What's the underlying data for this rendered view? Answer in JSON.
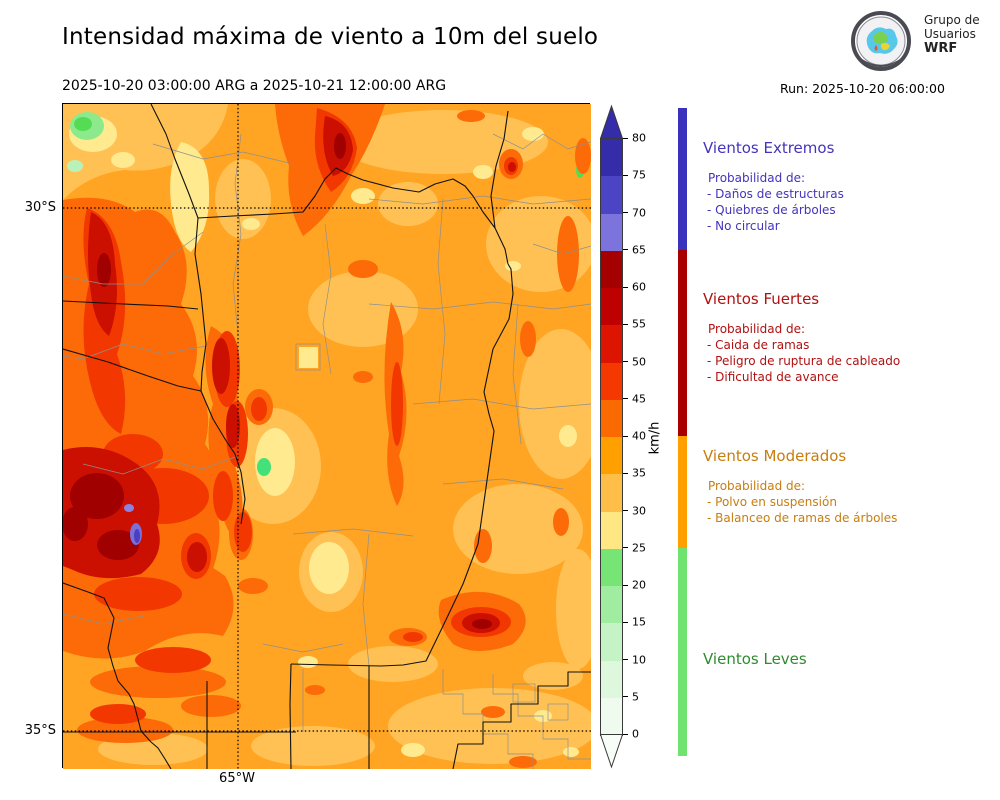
{
  "header": {
    "title": "Intensidad máxima de viento a 10m del suelo",
    "period": "2025-10-20 03:00:00 ARG  a  2025-10-21 12:00:00 ARG",
    "run": "Run: 2025-10-20 06:00:00",
    "logo": {
      "line1": "Grupo de",
      "line2": "Usuarios",
      "line3": "WRF"
    }
  },
  "map": {
    "lat_labels": [
      "30°S",
      "35°S"
    ],
    "lon_label": "65°W"
  },
  "colorbar": {
    "unit": "km/h",
    "tick_values": [
      0,
      5,
      10,
      15,
      20,
      25,
      30,
      35,
      40,
      45,
      50,
      55,
      60,
      65,
      70,
      75,
      80
    ],
    "bands": [
      {
        "from": 0,
        "to": 5,
        "color": "#eefbee"
      },
      {
        "from": 5,
        "to": 10,
        "color": "#ddf8dd"
      },
      {
        "from": 10,
        "to": 15,
        "color": "#c6f3c6"
      },
      {
        "from": 15,
        "to": 20,
        "color": "#a0eca0"
      },
      {
        "from": 20,
        "to": 25,
        "color": "#76e576"
      },
      {
        "from": 25,
        "to": 30,
        "color": "#ffe784"
      },
      {
        "from": 30,
        "to": 35,
        "color": "#ffbe48"
      },
      {
        "from": 35,
        "to": 40,
        "color": "#ffa000"
      },
      {
        "from": 40,
        "to": 45,
        "color": "#fb6a00"
      },
      {
        "from": 45,
        "to": 50,
        "color": "#f53800"
      },
      {
        "from": 50,
        "to": 55,
        "color": "#dc1400"
      },
      {
        "from": 55,
        "to": 60,
        "color": "#be0000"
      },
      {
        "from": 60,
        "to": 65,
        "color": "#a50000"
      },
      {
        "from": 65,
        "to": 70,
        "color": "#7c74dc"
      },
      {
        "from": 70,
        "to": 75,
        "color": "#4b44c4"
      },
      {
        "from": 75,
        "to": 80,
        "color": "#342ca8"
      }
    ],
    "arrow_up_color": "#342ca8",
    "arrow_down_color": "#f7fdf7"
  },
  "categories": [
    {
      "name": "Vientos Extremos",
      "text_color": "#4334bc",
      "bar_color": "#3a31bc",
      "range_kmh": [
        65,
        null
      ],
      "prob_label": "Probabilidad de:",
      "effects": [
        "- Daños de estructuras",
        "- Quiebres de árboles",
        "- No circular"
      ]
    },
    {
      "name": "Vientos Fuertes",
      "text_color": "#b01111",
      "bar_color": "#a80000",
      "range_kmh": [
        40,
        65
      ],
      "prob_label": "Probabilidad de:",
      "effects": [
        "- Caida de ramas",
        "- Peligro de ruptura de cableado",
        "- Dificultad de avance"
      ]
    },
    {
      "name": "Vientos Moderados",
      "text_color": "#c87d0e",
      "bar_color": "#ffa000",
      "range_kmh": [
        25,
        40
      ],
      "prob_label": "Probabilidad de:",
      "effects": [
        "- Polvo en suspensión",
        "- Balanceo de ramas de árboles"
      ]
    },
    {
      "name": "Vientos Leves",
      "text_color": "#2e8b2e",
      "bar_color": "#6fe26f",
      "range_kmh": [
        null,
        25
      ],
      "prob_label": "",
      "effects": []
    }
  ],
  "chart_data": {
    "type": "heatmap",
    "subtype": "filled-contour wind intensity map",
    "title": "Intensidad máxima de viento a 10m del suelo",
    "unit": "km/h",
    "scale_range": [
      0,
      80
    ],
    "scale_step": 5,
    "category_thresholds_kmh": {
      "leves": [
        0,
        25
      ],
      "moderados": [
        25,
        40
      ],
      "fuertes": [
        40,
        65
      ],
      "extremos": [
        65,
        null
      ]
    },
    "graticule": {
      "latitudes": [
        "30°S",
        "35°S"
      ],
      "longitudes": [
        "65°W"
      ]
    },
    "dominant_values_kmh": "mostly 35-45 over the domain, 45-65 along western sierras, small 65-75 spot west-center, 25-35 patches east and north-center"
  }
}
